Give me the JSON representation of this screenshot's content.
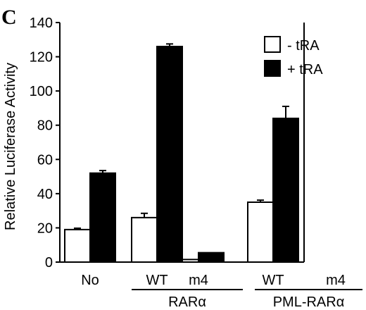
{
  "panel_label": "C",
  "chart_data": {
    "type": "bar",
    "ylabel": "Relative Luciferase Activity",
    "ylim": [
      0,
      140
    ],
    "yticks": [
      0,
      20,
      40,
      60,
      80,
      100,
      120,
      140
    ],
    "categories": [
      "No",
      "WT",
      "m4",
      "WT",
      "m4"
    ],
    "groups": [
      {
        "label": "RARα",
        "categories": [
          1,
          2
        ]
      },
      {
        "label": "PML-RARα",
        "categories": [
          3,
          4
        ]
      }
    ],
    "series": [
      {
        "name": "- tRA",
        "color": "#ffffff",
        "values": [
          19,
          26,
          1.5,
          35,
          0
        ],
        "errors": [
          0.8,
          2.5,
          0.3,
          1.2,
          0
        ]
      },
      {
        "name": "+ tRA",
        "color": "#000000",
        "values": [
          52,
          126,
          5.5,
          84,
          2
        ],
        "errors": [
          1.5,
          1.5,
          0.2,
          7,
          0.2
        ]
      }
    ],
    "legend_position": "top-right",
    "grid": false
  }
}
